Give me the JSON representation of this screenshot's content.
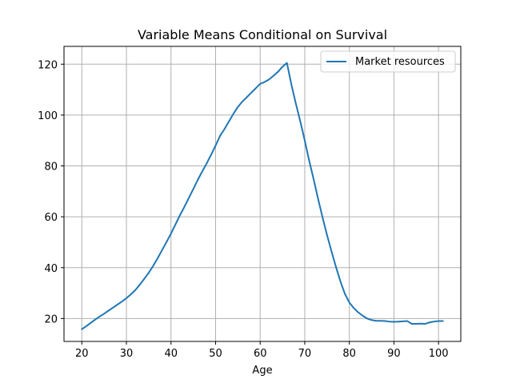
{
  "chart_data": {
    "type": "line",
    "title": "Variable Means Conditional on Survival",
    "xlabel": "Age",
    "ylabel": "",
    "xlim": [
      16,
      105
    ],
    "ylim": [
      11,
      127
    ],
    "xticks": [
      20,
      30,
      40,
      50,
      60,
      70,
      80,
      90,
      100
    ],
    "yticks": [
      20,
      40,
      60,
      80,
      100,
      120
    ],
    "grid": true,
    "legend": {
      "position": "top-right",
      "entries": [
        "Market resources"
      ]
    },
    "series": [
      {
        "name": "Market resources",
        "color": "#1f77b4",
        "x": [
          20,
          21,
          22,
          23,
          24,
          25,
          26,
          27,
          28,
          29,
          30,
          31,
          32,
          33,
          34,
          35,
          36,
          37,
          38,
          39,
          40,
          41,
          42,
          43,
          44,
          45,
          46,
          47,
          48,
          49,
          50,
          51,
          52,
          53,
          54,
          55,
          56,
          57,
          58,
          59,
          60,
          61,
          62,
          63,
          64,
          65,
          66,
          67,
          68,
          69,
          70,
          71,
          72,
          73,
          74,
          75,
          76,
          77,
          78,
          79,
          80,
          81,
          82,
          83,
          84,
          85,
          86,
          87,
          88,
          89,
          90,
          91,
          92,
          93,
          94,
          95,
          96,
          97,
          98,
          99,
          100,
          101
        ],
        "y": [
          15.8,
          17.0,
          18.3,
          19.6,
          20.8,
          21.9,
          23.1,
          24.3,
          25.5,
          26.7,
          28.0,
          29.5,
          31.2,
          33.3,
          35.6,
          38.0,
          40.7,
          43.7,
          46.9,
          50.1,
          53.4,
          57.0,
          60.6,
          63.9,
          67.4,
          70.9,
          74.5,
          77.8,
          81.0,
          84.4,
          88.0,
          91.8,
          94.5,
          97.5,
          100.5,
          103.2,
          105.3,
          107.0,
          108.8,
          110.5,
          112.3,
          113.0,
          114.0,
          115.5,
          117.0,
          119.0,
          120.5,
          112.0,
          104.5,
          97.5,
          90.0,
          82.0,
          74.7,
          67.0,
          59.7,
          52.8,
          46.4,
          40.3,
          34.6,
          29.7,
          26.3,
          24.1,
          22.4,
          21.1,
          20.0,
          19.4,
          19.1,
          19.1,
          19.0,
          18.8,
          18.7,
          18.8,
          18.9,
          19.0,
          17.9,
          17.9,
          18.0,
          17.9,
          18.5,
          18.8,
          19.0,
          19.0
        ]
      }
    ]
  }
}
